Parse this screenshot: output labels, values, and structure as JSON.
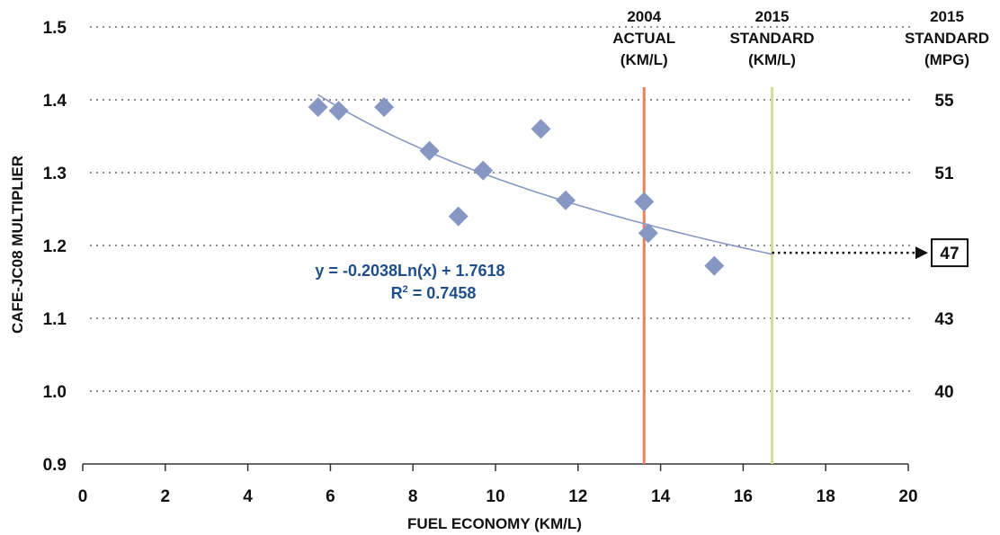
{
  "chart_data": {
    "type": "scatter",
    "xlabel": "FUEL ECONOMY (KM/L)",
    "ylabel": "CAFE-JC08 MULTIPLIER",
    "xlim": [
      0,
      20
    ],
    "ylim": [
      0.9,
      1.5
    ],
    "x_ticks": [
      "0",
      "2",
      "4",
      "6",
      "8",
      "10",
      "12",
      "14",
      "16",
      "18",
      "20"
    ],
    "y_ticks": [
      "0.9",
      "1.0",
      "1.1",
      "1.2",
      "1.3",
      "1.4",
      "1.5"
    ],
    "grid": "horizontal dotted",
    "series": [
      {
        "marker": "diamond",
        "color": "#8797c3",
        "points": [
          {
            "x": 5.7,
            "y": 1.39
          },
          {
            "x": 6.2,
            "y": 1.385
          },
          {
            "x": 7.3,
            "y": 1.39
          },
          {
            "x": 8.4,
            "y": 1.33
          },
          {
            "x": 9.1,
            "y": 1.24
          },
          {
            "x": 9.7,
            "y": 1.303
          },
          {
            "x": 11.1,
            "y": 1.36
          },
          {
            "x": 11.7,
            "y": 1.262
          },
          {
            "x": 13.6,
            "y": 1.26
          },
          {
            "x": 13.7,
            "y": 1.217
          },
          {
            "x": 15.3,
            "y": 1.172
          }
        ]
      }
    ],
    "trendline": {
      "type": "logarithmic",
      "a": -0.2038,
      "b": 1.7618,
      "x_range": [
        5.7,
        16.7
      ],
      "color": "#8797c3",
      "equation_label": "y = -0.2038Ln(x) + 1.7618",
      "r2_prefix": "R",
      "r2_sup": "2",
      "r2_value": " = 0.7458"
    },
    "reference_lines": [
      {
        "x": 13.6,
        "color": "#ee7f5f",
        "label_lines": [
          "2004",
          "ACTUAL",
          "(KM/L)"
        ]
      },
      {
        "x": 16.7,
        "color": "#d3df97",
        "label_lines": [
          "2015",
          "STANDARD",
          "(KM/L)"
        ]
      }
    ],
    "right_axis": {
      "header_lines": [
        "2015",
        "STANDARD",
        "(MPG)"
      ],
      "labels": [
        {
          "y": 1.4,
          "text": "55"
        },
        {
          "y": 1.3,
          "text": "51"
        },
        {
          "y": 1.1,
          "text": "43"
        },
        {
          "y": 1.0,
          "text": "40"
        }
      ],
      "highlight": {
        "y": 1.19,
        "text": "47"
      }
    }
  }
}
